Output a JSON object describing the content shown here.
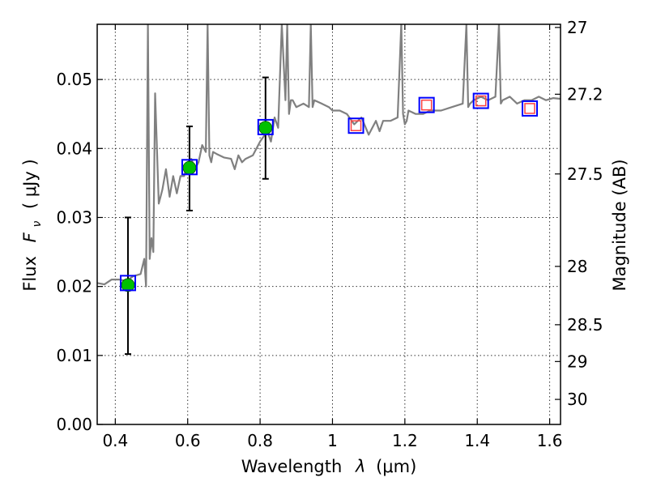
{
  "chart_data": {
    "type": "scatter",
    "title": "",
    "xlabel_text": "Wavelength",
    "xlabel_var": "λ",
    "xlabel_unit": "(μm)",
    "ylabel_text": "Flux",
    "ylabel_var": "F",
    "ylabel_sub": "ν",
    "ylabel_unit": "( μJy )",
    "y2label": "Magnitude (AB)",
    "xlim": [
      0.35,
      1.63
    ],
    "ylim": [
      0.0,
      0.058
    ],
    "grid": true,
    "x_ticks": [
      0.4,
      0.6,
      0.8,
      1.0,
      1.2,
      1.4,
      1.6
    ],
    "x_tick_labels": [
      "0.4",
      "0.6",
      "0.8",
      "1",
      "1.2",
      "1.4",
      "1.6"
    ],
    "y_ticks": [
      0.0,
      0.01,
      0.02,
      0.03,
      0.04,
      0.05
    ],
    "y_tick_labels": [
      "0.00",
      "0.01",
      "0.02",
      "0.03",
      "0.04",
      "0.05"
    ],
    "y2_ticks": [
      27,
      27.2,
      27.5,
      28,
      28.5,
      29,
      30
    ],
    "y2_tick_labels": [
      "27",
      "27.2",
      "27.5",
      "28",
      "28.5",
      "29",
      "30"
    ],
    "series": [
      {
        "name": "model-spectrum",
        "kind": "line",
        "color": "#808080",
        "x": [
          0.35,
          0.37,
          0.39,
          0.41,
          0.43,
          0.45,
          0.47,
          0.48,
          0.485,
          0.49,
          0.495,
          0.5,
          0.505,
          0.51,
          0.52,
          0.53,
          0.54,
          0.55,
          0.56,
          0.57,
          0.58,
          0.59,
          0.6,
          0.61,
          0.62,
          0.63,
          0.64,
          0.65,
          0.655,
          0.66,
          0.665,
          0.67,
          0.68,
          0.7,
          0.72,
          0.73,
          0.74,
          0.75,
          0.76,
          0.78,
          0.8,
          0.82,
          0.83,
          0.84,
          0.85,
          0.86,
          0.87,
          0.875,
          0.88,
          0.885,
          0.89,
          0.9,
          0.92,
          0.935,
          0.94,
          0.945,
          0.95,
          0.97,
          0.99,
          1.0,
          1.02,
          1.04,
          1.06,
          1.08,
          1.1,
          1.12,
          1.13,
          1.14,
          1.16,
          1.18,
          1.19,
          1.195,
          1.2,
          1.205,
          1.21,
          1.23,
          1.25,
          1.27,
          1.3,
          1.33,
          1.36,
          1.37,
          1.375,
          1.38,
          1.39,
          1.41,
          1.43,
          1.45,
          1.46,
          1.465,
          1.47,
          1.49,
          1.51,
          1.53,
          1.55,
          1.57,
          1.59,
          1.61,
          1.63
        ],
        "y": [
          0.0205,
          0.0203,
          0.021,
          0.021,
          0.0208,
          0.0215,
          0.0218,
          0.024,
          0.02,
          0.058,
          0.024,
          0.027,
          0.025,
          0.048,
          0.032,
          0.034,
          0.037,
          0.033,
          0.036,
          0.0335,
          0.036,
          0.036,
          0.038,
          0.0385,
          0.037,
          0.038,
          0.0405,
          0.0395,
          0.058,
          0.039,
          0.038,
          0.0395,
          0.0392,
          0.0387,
          0.0385,
          0.037,
          0.039,
          0.038,
          0.0385,
          0.039,
          0.041,
          0.0425,
          0.041,
          0.0445,
          0.043,
          0.058,
          0.047,
          0.058,
          0.045,
          0.047,
          0.047,
          0.046,
          0.0465,
          0.046,
          0.058,
          0.046,
          0.047,
          0.0465,
          0.046,
          0.0455,
          0.0455,
          0.045,
          0.0435,
          0.0445,
          0.042,
          0.044,
          0.0425,
          0.044,
          0.044,
          0.0445,
          0.058,
          0.045,
          0.0435,
          0.044,
          0.0455,
          0.045,
          0.045,
          0.0455,
          0.0455,
          0.046,
          0.0465,
          0.058,
          0.046,
          0.0465,
          0.047,
          0.0475,
          0.047,
          0.0475,
          0.058,
          0.0465,
          0.047,
          0.0475,
          0.0465,
          0.047,
          0.047,
          0.0475,
          0.047,
          0.0473,
          0.0472
        ]
      },
      {
        "name": "observed-photometry",
        "kind": "errorbar-points",
        "color": "#00c000",
        "x": [
          0.435,
          0.605,
          0.815
        ],
        "y": [
          0.0202,
          0.0372,
          0.043
        ],
        "yerr_low": [
          0.01,
          0.0062,
          0.0074
        ],
        "yerr_high": [
          0.0098,
          0.006,
          0.0073
        ]
      },
      {
        "name": "model-photometry",
        "kind": "open-square",
        "color": "#0000ff",
        "x": [
          0.435,
          0.605,
          0.815,
          1.065,
          1.26,
          1.41,
          1.545
        ],
        "y": [
          0.0205,
          0.0373,
          0.0431,
          0.0433,
          0.0463,
          0.0469,
          0.0458
        ]
      },
      {
        "name": "predicted-photometry",
        "kind": "open-square",
        "color": "#ff4040",
        "x": [
          1.065,
          1.26,
          1.41,
          1.545
        ],
        "y": [
          0.0433,
          0.0463,
          0.0469,
          0.0458
        ]
      }
    ]
  }
}
